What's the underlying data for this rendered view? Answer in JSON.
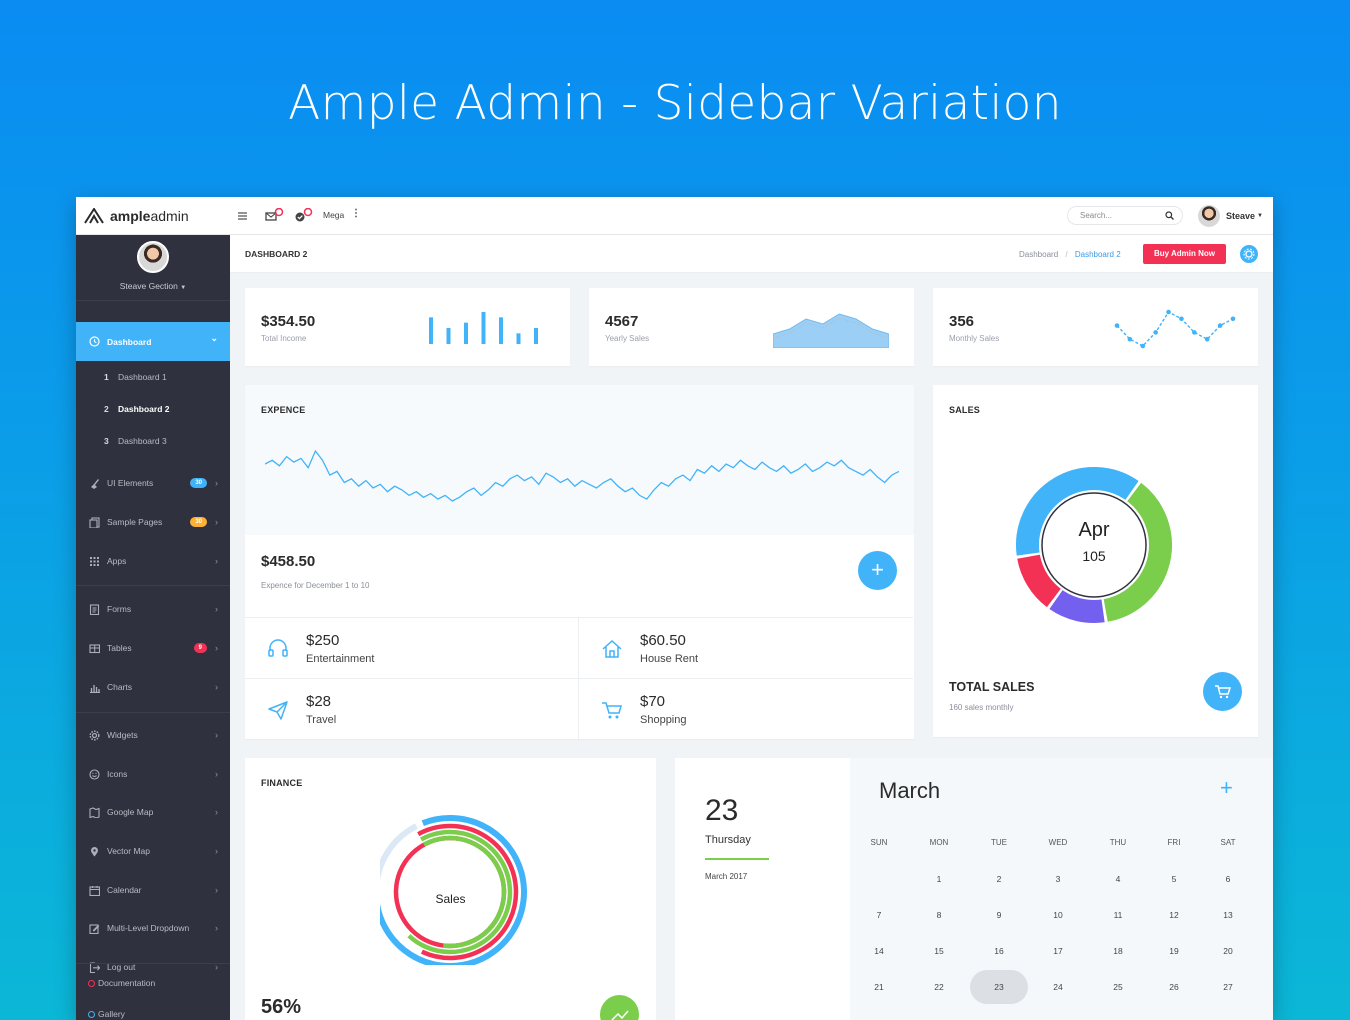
{
  "hero_title": "Ample Admin - Sidebar Variation",
  "brand": {
    "bold": "ample",
    "light": "admin"
  },
  "topbar": {
    "mega_label": "Mega",
    "search_placeholder": "Search...",
    "user_name": "Steave"
  },
  "sidebar": {
    "profile_name": "Steave Gection",
    "items": [
      {
        "label": "Dashboard",
        "icon": "clock-icon",
        "active": true
      },
      {
        "label": "UI Elements",
        "icon": "brush-icon",
        "badge": "30",
        "badge_color": "#41b3f9"
      },
      {
        "label": "Sample Pages",
        "icon": "pages-icon",
        "badge": "30",
        "badge_color": "#ffb136"
      },
      {
        "label": "Apps",
        "icon": "grid-icon"
      },
      {
        "label": "Forms",
        "icon": "forms-icon"
      },
      {
        "label": "Tables",
        "icon": "table-icon",
        "badge": "9",
        "badge_color": "#f33155"
      },
      {
        "label": "Charts",
        "icon": "chart-icon"
      },
      {
        "label": "Widgets",
        "icon": "gear-icon"
      },
      {
        "label": "Icons",
        "icon": "smiley-icon"
      },
      {
        "label": "Google Map",
        "icon": "map-icon"
      },
      {
        "label": "Vector Map",
        "icon": "pin-icon"
      },
      {
        "label": "Calendar",
        "icon": "calendar-icon"
      },
      {
        "label": "Multi-Level Dropdown",
        "icon": "edit-icon"
      },
      {
        "label": "Log out",
        "icon": "logout-icon"
      }
    ],
    "subitems": [
      {
        "num": "1",
        "label": "Dashboard 1"
      },
      {
        "num": "2",
        "label": "Dashboard 2"
      },
      {
        "num": "3",
        "label": "Dashboard 3"
      }
    ],
    "footer_links": [
      "Documentation",
      "Gallery"
    ]
  },
  "page": {
    "title": "DASHBOARD 2",
    "breadcrumb": [
      "Dashboard",
      "Dashboard 2"
    ],
    "buy_button": "Buy Admin Now"
  },
  "stats": [
    {
      "value": "$354.50",
      "label": "Total Income"
    },
    {
      "value": "4567",
      "label": "Yearly Sales"
    },
    {
      "value": "356",
      "label": "Monthly Sales"
    }
  ],
  "expense": {
    "title": "EXPENCE",
    "amount": "$458.50",
    "caption": "Expence for December 1 to 10",
    "items": [
      {
        "amount": "$250",
        "name": "Entertainment",
        "icon": "headset-icon"
      },
      {
        "amount": "$60.50",
        "name": "House Rent",
        "icon": "home-icon"
      },
      {
        "amount": "$28",
        "name": "Travel",
        "icon": "paper-plane-icon"
      },
      {
        "amount": "$70",
        "name": "Shopping",
        "icon": "cart-icon"
      }
    ]
  },
  "sales": {
    "title": "SALES",
    "center_month": "Apr",
    "center_value": "105",
    "total_title": "TOTAL SALES",
    "total_caption": "160 sales monthly"
  },
  "finance": {
    "title": "FINANCE",
    "center_label": "Sales",
    "percent": "56%"
  },
  "calendar": {
    "day": "23",
    "weekday": "Thursday",
    "month_year": "March 2017",
    "month": "March",
    "weekdays": [
      "SUN",
      "MON",
      "TUE",
      "WED",
      "THU",
      "FRI",
      "SAT"
    ],
    "weeks": [
      [
        "",
        "1",
        "2",
        "3",
        "4",
        "5",
        "6"
      ],
      [
        "7",
        "8",
        "9",
        "10",
        "11",
        "12",
        "13"
      ],
      [
        "14",
        "15",
        "16",
        "17",
        "18",
        "19",
        "20"
      ],
      [
        "21",
        "22",
        "23",
        "24",
        "25",
        "26",
        "27"
      ]
    ],
    "selected": "23"
  },
  "chart_data": [
    {
      "type": "bar",
      "values": [
        5,
        3,
        4,
        6,
        5,
        2,
        3
      ]
    },
    {
      "type": "area",
      "values": [
        2,
        3,
        5,
        4,
        6,
        5,
        3,
        2
      ]
    },
    {
      "type": "line",
      "values": [
        4,
        2,
        1,
        3,
        6,
        5,
        3,
        2,
        4,
        5
      ]
    },
    {
      "type": "line",
      "values": [
        48,
        50,
        47,
        52,
        49,
        51,
        46,
        55,
        50,
        42,
        44,
        38,
        40,
        36,
        39,
        35,
        37,
        33,
        36,
        34,
        31,
        33,
        30,
        32,
        29,
        31,
        28,
        30,
        33,
        35,
        31,
        34,
        38,
        36,
        40,
        42,
        39,
        41,
        37,
        43,
        41,
        38,
        40,
        36,
        39,
        37,
        35,
        38,
        40,
        36,
        33,
        35,
        31,
        29,
        34,
        38,
        36,
        40,
        42,
        39,
        45,
        43,
        47,
        44,
        48,
        46,
        50,
        47,
        45,
        49,
        46,
        44,
        47,
        43,
        45,
        48,
        44,
        46,
        49,
        47,
        50,
        46,
        44,
        42,
        45,
        41,
        38,
        42,
        44
      ]
    },
    {
      "type": "pie",
      "values": [
        30,
        30,
        10,
        10
      ],
      "colors": [
        "#41b3f9",
        "#7ace4c",
        "#7460ee",
        "#f33155"
      ]
    },
    {
      "type": "pie",
      "values": [
        80,
        65,
        70,
        60
      ],
      "colors": [
        "#41b3f9",
        "#f33155",
        "#7ace4c",
        "#dbe9f7"
      ]
    }
  ],
  "colors": {
    "accent": "#41b3f9",
    "danger": "#f33155",
    "success": "#7ace4c",
    "sidebar": "#2f323e"
  }
}
